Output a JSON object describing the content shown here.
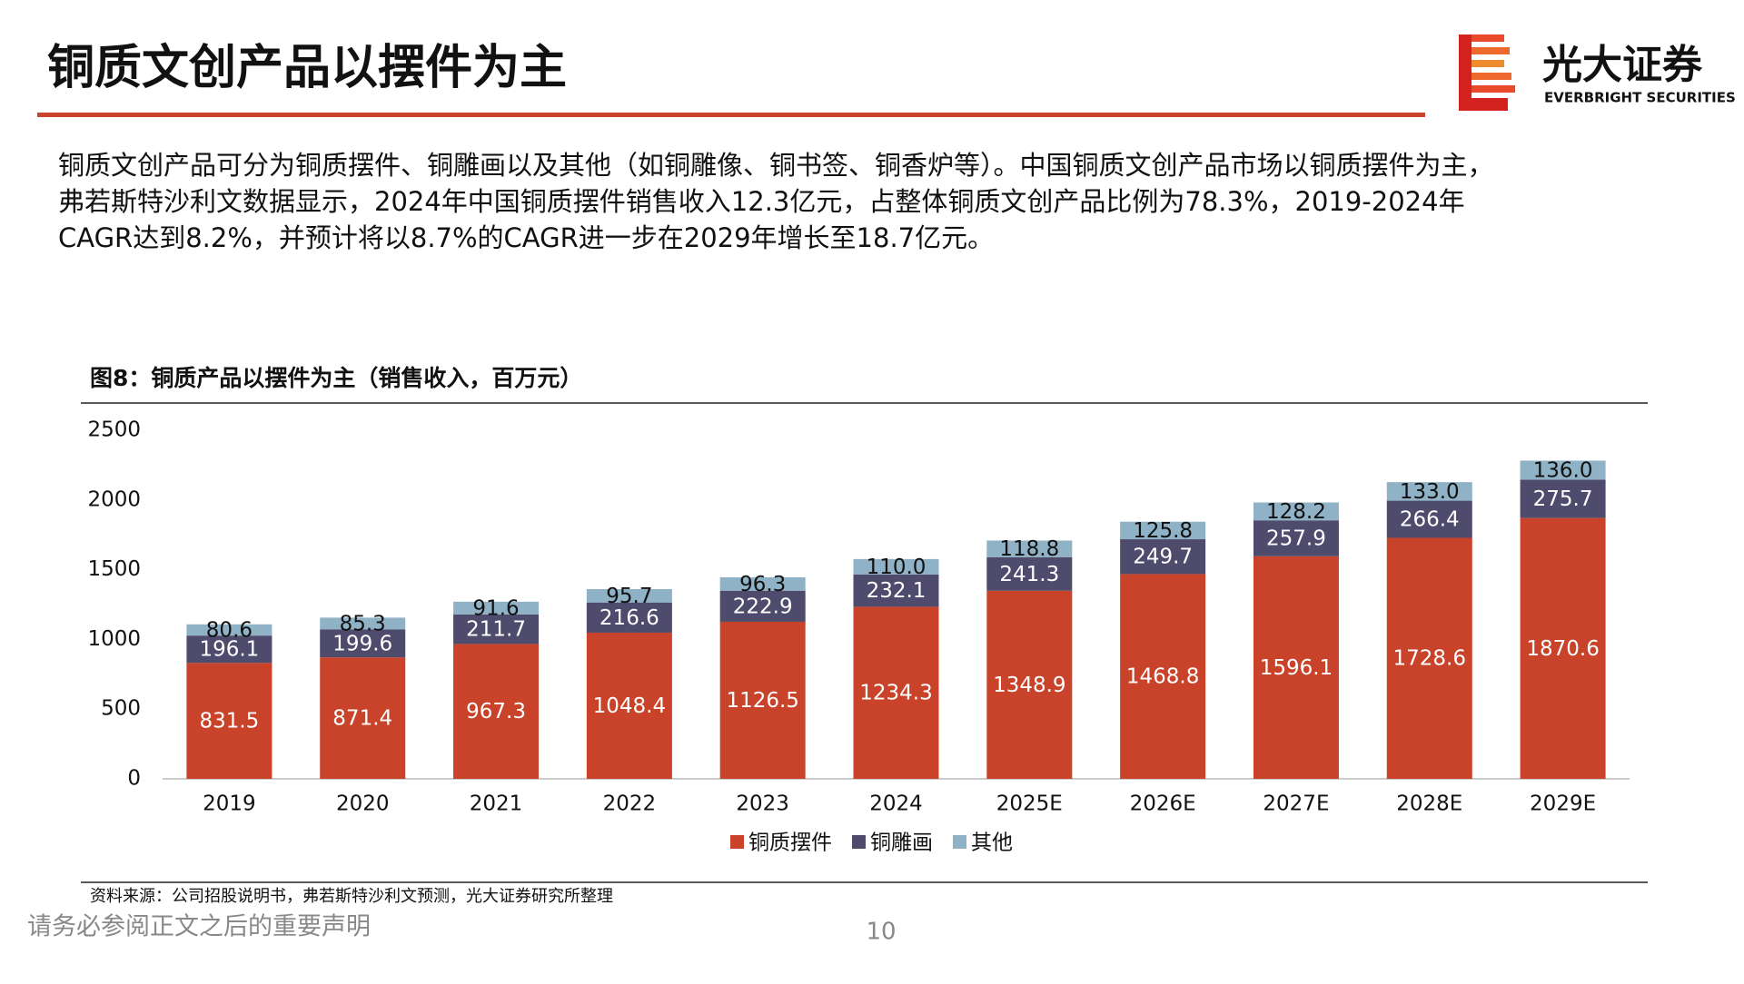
{
  "header": {
    "title": "铜质文创产品以摆件为主",
    "logo_cn": "光大证券",
    "logo_en": "EVERBRIGHT SECURITIES"
  },
  "paragraph": [
    "铜质文创产品可分为铜质摆件、铜雕画以及其他（如铜雕像、铜书签、铜香炉等）。中国铜质文创产品市场以铜质摆件为主，",
    "弗若斯特沙利文数据显示，2024年中国铜质摆件销售收入12.3亿元，占整体铜质文创产品比例为78.3%，2019-2024年",
    "CAGR达到8.2%，并预计将以8.7%的CAGR进一步在2029年增长至18.7亿元。"
  ],
  "chart_data": {
    "type": "stacked-bar",
    "title": "图8：铜质产品以摆件为主（销售收入，百万元）",
    "categories": [
      "2019",
      "2020",
      "2021",
      "2022",
      "2023",
      "2024",
      "2025E",
      "2026E",
      "2027E",
      "2028E",
      "2029E"
    ],
    "series": [
      {
        "name": "铜质摆件",
        "color": "#c8432a",
        "values": [
          831.5,
          871.4,
          967.3,
          1048.4,
          1126.5,
          1234.3,
          1348.9,
          1468.8,
          1596.1,
          1728.6,
          1870.6
        ]
      },
      {
        "name": "铜雕画",
        "color": "#4e4b6c",
        "values": [
          196.1,
          199.6,
          211.7,
          216.6,
          222.9,
          232.1,
          241.3,
          249.7,
          257.9,
          266.4,
          275.7
        ]
      },
      {
        "name": "其他",
        "color": "#8fb2c6",
        "values": [
          80.6,
          85.3,
          91.6,
          95.7,
          96.3,
          110.0,
          118.8,
          125.8,
          128.2,
          133.0,
          136.0
        ],
        "value_labels": [
          "80.6",
          "85.3",
          "91.6",
          "95.7",
          "96.3",
          "110.0",
          "118.8",
          "125.8",
          "128.2",
          "133.0",
          "136.0"
        ]
      }
    ],
    "ylim": [
      0,
      2500
    ],
    "yticks": [
      0,
      500,
      1000,
      1500,
      2000,
      2500
    ],
    "grid": false,
    "legend": "bottom",
    "source": "资料来源：公司招股说明书，弗若斯特沙利文预测，光大证券研究所整理"
  },
  "footer": {
    "disclaimer": "请务必参阅正文之后的重要声明",
    "page": "10"
  }
}
